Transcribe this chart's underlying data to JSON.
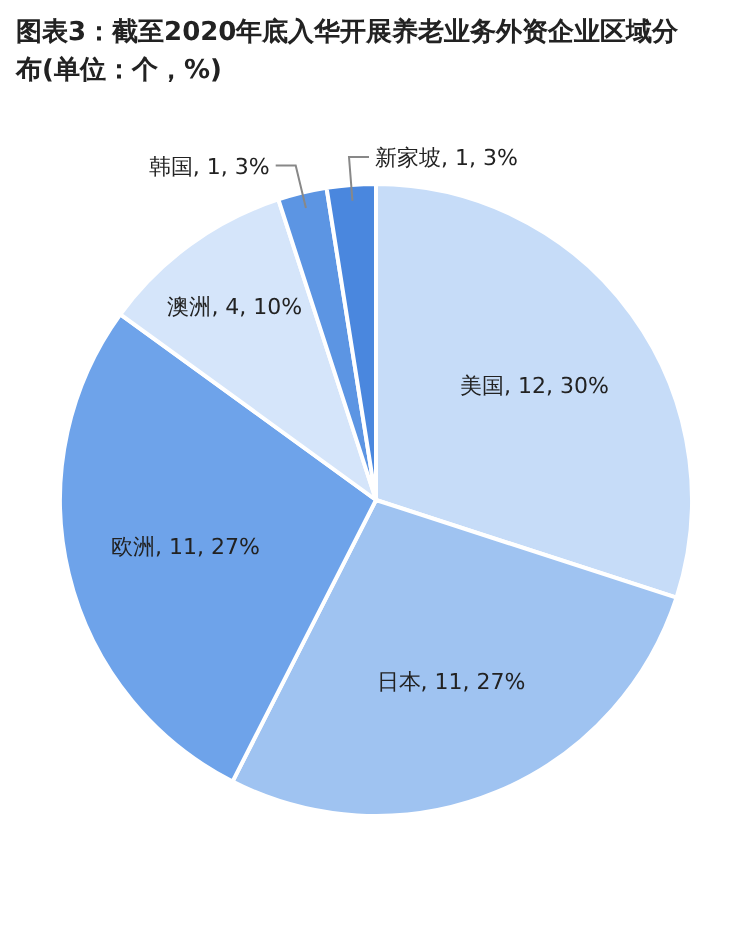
{
  "chart_data": {
    "type": "pie",
    "title": "图表3：截至2020年底入华开展养老业务外资企业区域分布(单位：个，%)",
    "categories": [
      "美国",
      "日本",
      "欧洲",
      "澳洲",
      "韩国",
      "新家坡"
    ],
    "values": [
      12,
      11,
      11,
      4,
      1,
      1
    ],
    "value_labels": [
      "12, 30%",
      "11, 27%",
      "11, 27%",
      "4, 10%",
      "1, 3%",
      "1, 3%"
    ],
    "colors": [
      "#c6dcf8",
      "#9fc3f1",
      "#6ea3ea",
      "#d5e5fa",
      "#5c95e3",
      "#4a87de"
    ]
  }
}
